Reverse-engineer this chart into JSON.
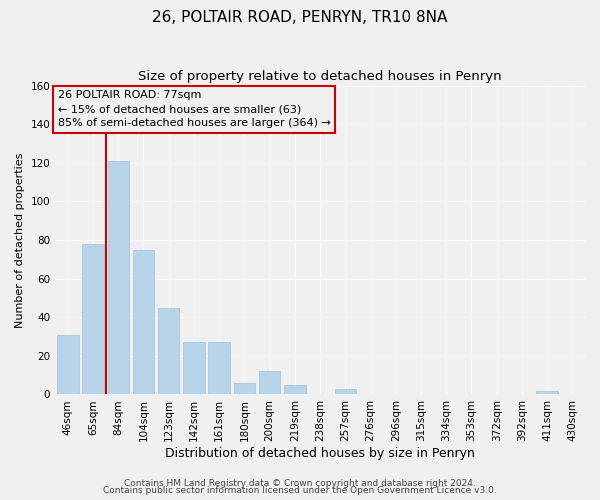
{
  "title": "26, POLTAIR ROAD, PENRYN, TR10 8NA",
  "subtitle": "Size of property relative to detached houses in Penryn",
  "xlabel": "Distribution of detached houses by size in Penryn",
  "ylabel": "Number of detached properties",
  "bar_labels": [
    "46sqm",
    "65sqm",
    "84sqm",
    "104sqm",
    "123sqm",
    "142sqm",
    "161sqm",
    "180sqm",
    "200sqm",
    "219sqm",
    "238sqm",
    "257sqm",
    "276sqm",
    "296sqm",
    "315sqm",
    "334sqm",
    "353sqm",
    "372sqm",
    "392sqm",
    "411sqm",
    "430sqm"
  ],
  "bar_values": [
    31,
    78,
    121,
    75,
    45,
    27,
    27,
    6,
    12,
    5,
    0,
    3,
    0,
    0,
    0,
    0,
    0,
    0,
    0,
    2,
    0
  ],
  "bar_color": "#b8d4e8",
  "bar_edge_color": "#a0c0d8",
  "vline_color": "#cc0000",
  "vline_x_index": 1.5,
  "ylim": [
    0,
    160
  ],
  "yticks": [
    0,
    20,
    40,
    60,
    80,
    100,
    120,
    140,
    160
  ],
  "annotation_title": "26 POLTAIR ROAD: 77sqm",
  "annotation_line1": "← 15% of detached houses are smaller (63)",
  "annotation_line2": "85% of semi-detached houses are larger (364) →",
  "footer1": "Contains HM Land Registry data © Crown copyright and database right 2024.",
  "footer2": "Contains public sector information licensed under the Open Government Licence v3.0.",
  "bg_color": "#f0f0f0",
  "grid_color": "#ffffff",
  "title_fontsize": 11,
  "subtitle_fontsize": 9.5,
  "xlabel_fontsize": 9,
  "ylabel_fontsize": 8,
  "tick_fontsize": 7.5,
  "ann_fontsize": 8,
  "footer_fontsize": 6.5
}
